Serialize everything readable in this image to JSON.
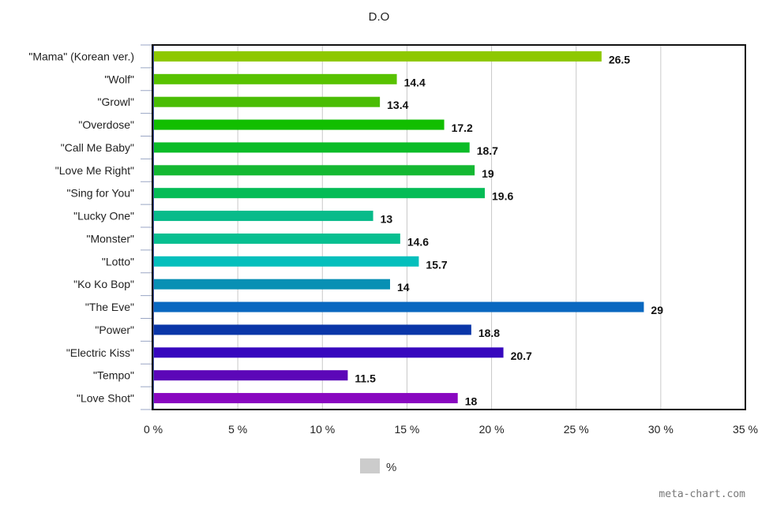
{
  "chart_data": {
    "type": "bar",
    "orientation": "horizontal",
    "title": "D.O",
    "categories": [
      "\"Mama\" (Korean ver.)",
      "\"Wolf\"",
      "\"Growl\"",
      "\"Overdose\"",
      "\"Call Me Baby\"",
      "\"Love Me Right\"",
      "\"Sing for You\"",
      "\"Lucky One\"",
      "\"Monster\"",
      "\"Lotto\"",
      "\"Ko Ko Bop\"",
      "\"The Eve\"",
      "\"Power\"",
      "\"Electric Kiss\"",
      "\"Tempo\"",
      "\"Love Shot\""
    ],
    "values": [
      26.5,
      14.4,
      13.4,
      17.2,
      18.7,
      19,
      19.6,
      13,
      14.6,
      15.7,
      14,
      29,
      18.8,
      20.7,
      11.5,
      18
    ],
    "value_labels": [
      "26.5",
      "14.4",
      "13.4",
      "17.2",
      "18.7",
      "19",
      "19.6",
      "13",
      "14.6",
      "15.7",
      "14",
      "29",
      "18.8",
      "20.7",
      "11.5",
      "18"
    ],
    "colors": [
      "#8ec800",
      "#58c200",
      "#4abd04",
      "#12be00",
      "#0cbc28",
      "#14b832",
      "#05bc56",
      "#08bb8a",
      "#07bf90",
      "#04bfbc",
      "#0890b4",
      "#0a68c0",
      "#0a36a8",
      "#3708be",
      "#5c07b8",
      "#8908c0"
    ],
    "xlim": [
      0,
      35
    ],
    "xticks": [
      0,
      5,
      10,
      15,
      20,
      25,
      30,
      35
    ],
    "xtick_labels": [
      "0 %",
      "5 %",
      "10 %",
      "15 %",
      "20 %",
      "25 %",
      "30 %",
      "35 %"
    ],
    "grid": true,
    "legend": {
      "label": "%",
      "color": "#cccccc",
      "position": "bottom"
    }
  },
  "watermark": "meta-chart.com"
}
